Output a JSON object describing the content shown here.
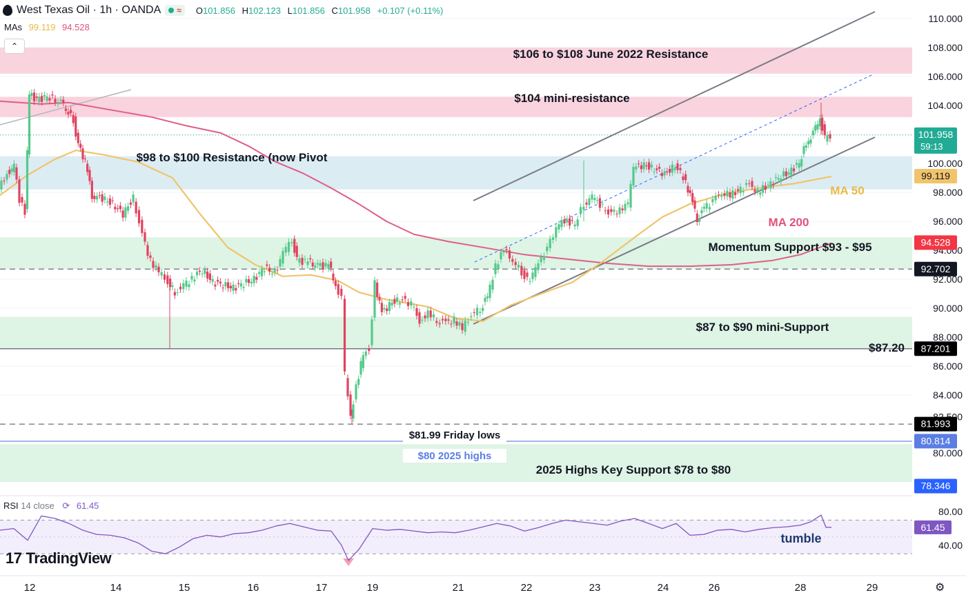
{
  "header": {
    "symbol": "West Texas Oil · 1h · OANDA",
    "open_label": "O",
    "open": "101.856",
    "high_label": "H",
    "high": "102.123",
    "low_label": "L",
    "low": "101.856",
    "close_label": "C",
    "close": "101.958",
    "change": "+0.107 (+0.11%)",
    "mas_label": "MAs",
    "ma50_value": "99.119",
    "ma200_value": "94.528",
    "collapse_icon": "chevron-up-icon"
  },
  "rsi_header": {
    "name": "RSI",
    "params": "14 close",
    "value": "61.45",
    "icon": "refresh-icon"
  },
  "branding": {
    "logo_mark": "17",
    "name": "TradingView"
  },
  "colors": {
    "up": "#22ab94",
    "up_candle": "#54c98a",
    "down": "#e0435f",
    "ma50": "#f0c46a",
    "ma200": "#df5d86",
    "rsi": "#7e57c2",
    "resistance_zone": "#f9d3de",
    "pivot_zone": "#dcecf3",
    "support_zone": "#def4e5"
  },
  "chart_data": {
    "type": "line",
    "title": "West Texas Oil · 1h · OANDA",
    "ylim": [
      80.0,
      110.5
    ],
    "price_axis_ticks": [
      "110.000",
      "108.000",
      "106.000",
      "104.000",
      "100.000",
      "98.000",
      "96.000",
      "94.000",
      "92.000",
      "90.000",
      "88.000",
      "86.000",
      "84.000",
      "82.500",
      "80.000"
    ],
    "x_ticks": [
      "12",
      "14",
      "15",
      "16",
      "17",
      "19",
      "21",
      "22",
      "23",
      "24",
      "26",
      "28",
      "29"
    ],
    "price_tags": [
      {
        "text": "101.958",
        "sub": "59:13",
        "color": "#22ab94"
      },
      {
        "text": "99.119",
        "color": "#f0c46a"
      },
      {
        "text": "94.528",
        "color": "#f23645"
      },
      {
        "text": "92.702",
        "color": "#131722"
      },
      {
        "text": "87.201",
        "color": "#000000"
      },
      {
        "text": "81.993",
        "color": "#000000"
      },
      {
        "text": "80.814",
        "color": "#5b7ee5"
      },
      {
        "text": "78.346",
        "color": "#2962ff"
      }
    ],
    "zones": [
      {
        "label": "$106 to $108 June 2022 Resistance",
        "from": 106.2,
        "to": 108.0,
        "kind": "resistance"
      },
      {
        "label": "$104 mini-resistance",
        "from": 103.2,
        "to": 104.6,
        "kind": "resistance"
      },
      {
        "label": "$98 to $100 Resistance (now Pivot",
        "from": 98.2,
        "to": 100.5,
        "kind": "pivot"
      },
      {
        "label": "Momentum Support $93 - $95",
        "from": 92.7,
        "to": 94.9,
        "kind": "support"
      },
      {
        "label": "$87 to $90 mini-Support",
        "from": 87.2,
        "to": 89.4,
        "kind": "support"
      },
      {
        "label": "2025 Highs Key Support $78 to $80",
        "from": 78.0,
        "to": 80.6,
        "kind": "support"
      }
    ],
    "lines": [
      {
        "label": "$87.20",
        "value": 87.2,
        "style": "solid"
      },
      {
        "label": "$81.99 Friday lows",
        "value": 81.99,
        "style": "dashed"
      },
      {
        "label": "$80 2025 highs",
        "value": 80.81,
        "style": "solid-blue"
      },
      {
        "label": "",
        "value": 92.7,
        "style": "dashed"
      }
    ],
    "ma_labels": {
      "ma50": "MA 50",
      "ma200": "MA 200"
    },
    "rsi": {
      "ylim": [
        20,
        90
      ],
      "ticks": [
        "80.00",
        "40.00"
      ],
      "bands": [
        70,
        30
      ],
      "value": "61.45",
      "annotation": "tumble"
    },
    "series": [
      {
        "name": "MA 200",
        "points": [
          [
            0,
            104.3
          ],
          [
            60,
            104.1
          ],
          [
            100,
            104.2
          ],
          [
            160,
            103.7
          ],
          [
            220,
            103.2
          ],
          [
            270,
            102.6
          ],
          [
            320,
            102.1
          ],
          [
            360,
            101.2
          ],
          [
            400,
            100.1
          ],
          [
            440,
            99.3
          ],
          [
            480,
            98.3
          ],
          [
            520,
            97.2
          ],
          [
            560,
            96.0
          ],
          [
            600,
            95.1
          ],
          [
            650,
            94.6
          ],
          [
            700,
            94.2
          ],
          [
            760,
            93.7
          ],
          [
            820,
            93.4
          ],
          [
            880,
            93.1
          ],
          [
            940,
            92.9
          ],
          [
            1000,
            92.9
          ],
          [
            1060,
            93.0
          ],
          [
            1120,
            93.3
          ],
          [
            1160,
            93.7
          ],
          [
            1205,
            94.5
          ]
        ]
      },
      {
        "name": "MA 50",
        "points": [
          [
            0,
            97.8
          ],
          [
            40,
            99.2
          ],
          [
            80,
            100.3
          ],
          [
            110,
            100.9
          ],
          [
            150,
            100.6
          ],
          [
            200,
            100.1
          ],
          [
            250,
            99.0
          ],
          [
            290,
            96.5
          ],
          [
            330,
            94.2
          ],
          [
            370,
            93.0
          ],
          [
            410,
            92.2
          ],
          [
            450,
            92.3
          ],
          [
            490,
            91.9
          ],
          [
            520,
            91.1
          ],
          [
            560,
            90.6
          ],
          [
            620,
            90.1
          ],
          [
            660,
            89.3
          ],
          [
            700,
            89.1
          ],
          [
            740,
            90.2
          ],
          [
            790,
            91.1
          ],
          [
            830,
            91.8
          ],
          [
            870,
            93.1
          ],
          [
            920,
            94.9
          ],
          [
            960,
            96.3
          ],
          [
            1000,
            97.2
          ],
          [
            1050,
            97.9
          ],
          [
            1100,
            98.3
          ],
          [
            1150,
            98.6
          ],
          [
            1205,
            99.1
          ]
        ]
      },
      {
        "name": "price",
        "points": [
          [
            0,
            98.2
          ],
          [
            12,
            99.3
          ],
          [
            22,
            99.8
          ],
          [
            30,
            97.5
          ],
          [
            38,
            96.6
          ],
          [
            44,
            104.8
          ],
          [
            55,
            104.4
          ],
          [
            70,
            104.6
          ],
          [
            90,
            104.2
          ],
          [
            108,
            103.0
          ],
          [
            115,
            101.2
          ],
          [
            125,
            100.2
          ],
          [
            135,
            97.8
          ],
          [
            150,
            97.6
          ],
          [
            165,
            97.2
          ],
          [
            180,
            96.5
          ],
          [
            195,
            97.6
          ],
          [
            208,
            95.0
          ],
          [
            220,
            93.3
          ],
          [
            232,
            92.5
          ],
          [
            245,
            91.8
          ],
          [
            255,
            91.1
          ],
          [
            268,
            91.5
          ],
          [
            280,
            92.1
          ],
          [
            295,
            92.6
          ],
          [
            310,
            91.8
          ],
          [
            325,
            91.6
          ],
          [
            340,
            91.4
          ],
          [
            355,
            91.7
          ],
          [
            370,
            92.0
          ],
          [
            385,
            92.8
          ],
          [
            400,
            92.4
          ],
          [
            412,
            93.8
          ],
          [
            425,
            94.8
          ],
          [
            432,
            93.3
          ],
          [
            448,
            93.2
          ],
          [
            462,
            92.9
          ],
          [
            478,
            93.0
          ],
          [
            488,
            91.6
          ],
          [
            497,
            90.6
          ],
          [
            502,
            85.4
          ],
          [
            510,
            82.4
          ],
          [
            518,
            84.5
          ],
          [
            528,
            86.9
          ],
          [
            537,
            87.2
          ],
          [
            545,
            91.7
          ],
          [
            555,
            89.7
          ],
          [
            570,
            90.4
          ],
          [
            585,
            90.6
          ],
          [
            598,
            90.3
          ],
          [
            610,
            89.1
          ],
          [
            622,
            89.6
          ],
          [
            635,
            89.2
          ],
          [
            648,
            89.0
          ],
          [
            660,
            89.2
          ],
          [
            672,
            88.6
          ],
          [
            685,
            89.5
          ],
          [
            698,
            90.0
          ],
          [
            708,
            90.8
          ],
          [
            720,
            92.9
          ],
          [
            732,
            94.0
          ],
          [
            745,
            93.3
          ],
          [
            758,
            92.5
          ],
          [
            770,
            91.8
          ],
          [
            782,
            93.3
          ],
          [
            795,
            94.0
          ],
          [
            808,
            95.6
          ],
          [
            820,
            96.1
          ],
          [
            835,
            95.8
          ],
          [
            848,
            97.2
          ],
          [
            860,
            97.7
          ],
          [
            875,
            97.0
          ],
          [
            888,
            96.4
          ],
          [
            900,
            96.9
          ],
          [
            912,
            97.2
          ],
          [
            920,
            99.7
          ],
          [
            935,
            99.9
          ],
          [
            950,
            99.6
          ],
          [
            965,
            99.3
          ],
          [
            980,
            99.8
          ],
          [
            992,
            99.1
          ],
          [
            1002,
            97.8
          ],
          [
            1012,
            96.2
          ],
          [
            1022,
            96.9
          ],
          [
            1035,
            97.4
          ],
          [
            1048,
            98.0
          ],
          [
            1060,
            97.8
          ],
          [
            1075,
            98.2
          ],
          [
            1088,
            98.6
          ],
          [
            1100,
            98.0
          ],
          [
            1115,
            98.5
          ],
          [
            1130,
            99.0
          ],
          [
            1145,
            99.4
          ],
          [
            1160,
            100.0
          ],
          [
            1170,
            101.4
          ],
          [
            1180,
            102.0
          ],
          [
            1190,
            103.2
          ],
          [
            1197,
            101.7
          ],
          [
            1205,
            101.96
          ]
        ]
      },
      {
        "name": "RSI 14",
        "points": [
          [
            0,
            58
          ],
          [
            20,
            60
          ],
          [
            40,
            46
          ],
          [
            60,
            75
          ],
          [
            80,
            72
          ],
          [
            100,
            66
          ],
          [
            120,
            58
          ],
          [
            140,
            53
          ],
          [
            160,
            52
          ],
          [
            180,
            49
          ],
          [
            200,
            43
          ],
          [
            220,
            33
          ],
          [
            240,
            30
          ],
          [
            260,
            38
          ],
          [
            280,
            48
          ],
          [
            300,
            52
          ],
          [
            320,
            50
          ],
          [
            340,
            54
          ],
          [
            360,
            55
          ],
          [
            380,
            58
          ],
          [
            400,
            63
          ],
          [
            420,
            66
          ],
          [
            440,
            62
          ],
          [
            460,
            58
          ],
          [
            480,
            57
          ],
          [
            495,
            40
          ],
          [
            505,
            22
          ],
          [
            520,
            35
          ],
          [
            540,
            60
          ],
          [
            560,
            58
          ],
          [
            580,
            59
          ],
          [
            600,
            57
          ],
          [
            620,
            55
          ],
          [
            640,
            56
          ],
          [
            660,
            55
          ],
          [
            680,
            58
          ],
          [
            700,
            62
          ],
          [
            720,
            66
          ],
          [
            740,
            63
          ],
          [
            760,
            57
          ],
          [
            780,
            61
          ],
          [
            800,
            66
          ],
          [
            820,
            70
          ],
          [
            840,
            68
          ],
          [
            860,
            66
          ],
          [
            880,
            64
          ],
          [
            900,
            69
          ],
          [
            920,
            72
          ],
          [
            940,
            66
          ],
          [
            960,
            60
          ],
          [
            980,
            66
          ],
          [
            1000,
            52
          ],
          [
            1020,
            53
          ],
          [
            1040,
            58
          ],
          [
            1060,
            59
          ],
          [
            1080,
            56
          ],
          [
            1100,
            59
          ],
          [
            1120,
            61
          ],
          [
            1140,
            62
          ],
          [
            1160,
            64
          ],
          [
            1175,
            68
          ],
          [
            1190,
            76
          ],
          [
            1197,
            61.45
          ],
          [
            1205,
            61.45
          ]
        ]
      }
    ]
  }
}
